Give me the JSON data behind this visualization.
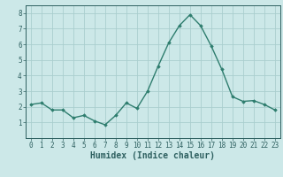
{
  "x": [
    0,
    1,
    2,
    3,
    4,
    5,
    6,
    7,
    8,
    9,
    10,
    11,
    12,
    13,
    14,
    15,
    16,
    17,
    18,
    19,
    20,
    21,
    22,
    23
  ],
  "y": [
    2.15,
    2.25,
    1.8,
    1.8,
    1.3,
    1.45,
    1.1,
    0.85,
    1.45,
    2.25,
    1.9,
    3.0,
    4.6,
    6.1,
    7.2,
    7.9,
    7.2,
    5.9,
    4.4,
    2.65,
    2.35,
    2.4,
    2.15,
    1.8
  ],
  "line_color": "#2e7d6e",
  "marker": "D",
  "marker_size": 1.8,
  "line_width": 1.0,
  "bg_color": "#cce8e8",
  "grid_color": "#aacece",
  "tick_color": "#2e6060",
  "label_color": "#2e6060",
  "xlabel": "Humidex (Indice chaleur)",
  "xlabel_fontsize": 7,
  "xlim": [
    -0.5,
    23.5
  ],
  "ylim": [
    0,
    8.5
  ],
  "yticks": [
    1,
    2,
    3,
    4,
    5,
    6,
    7,
    8
  ],
  "xticks": [
    0,
    1,
    2,
    3,
    4,
    5,
    6,
    7,
    8,
    9,
    10,
    11,
    12,
    13,
    14,
    15,
    16,
    17,
    18,
    19,
    20,
    21,
    22,
    23
  ],
  "tick_fontsize": 5.5
}
